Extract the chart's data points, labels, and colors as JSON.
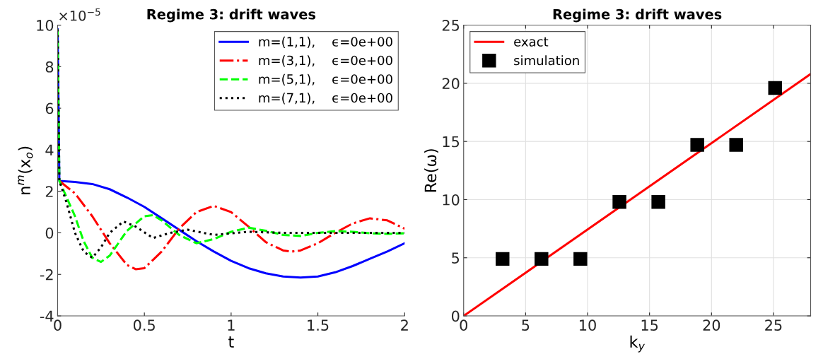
{
  "chart_data": [
    {
      "type": "line",
      "title": "Regime 3: drift waves",
      "xlabel": "t",
      "ylabel": "n$^{m}$(x$_{o}$)",
      "xlim": [
        0,
        2
      ],
      "ylim": [
        -4,
        10
      ],
      "xticks": [
        0,
        0.5,
        1,
        1.5,
        2
      ],
      "yticks": [
        -4,
        -2,
        0,
        2,
        4,
        6,
        8,
        10
      ],
      "grid": false,
      "legend": "top right",
      "annotations": [
        "×10$^{−5}$"
      ],
      "series": [
        {
          "name": "m=(1,1),    ϵ=0e+00",
          "color": "#0000ff",
          "line_style": "solid",
          "x": [
            0,
            0.01,
            0.1,
            0.2,
            0.3,
            0.4,
            0.5,
            0.6,
            0.7,
            0.8,
            0.9,
            1.0,
            1.1,
            1.2,
            1.3,
            1.4,
            1.5,
            1.6,
            1.7,
            1.8,
            1.9,
            2.0
          ],
          "values": [
            9.8,
            2.5,
            2.45,
            2.35,
            2.1,
            1.7,
            1.25,
            0.7,
            0.15,
            -0.4,
            -0.9,
            -1.35,
            -1.7,
            -1.95,
            -2.1,
            -2.15,
            -2.1,
            -1.9,
            -1.6,
            -1.25,
            -0.9,
            -0.5
          ]
        },
        {
          "name": "m=(3,1),    ϵ=0e+00",
          "color": "#ff0000",
          "line_style": "dashdot",
          "x": [
            0.01,
            0.1,
            0.2,
            0.3,
            0.4,
            0.45,
            0.5,
            0.6,
            0.7,
            0.8,
            0.9,
            1.0,
            1.1,
            1.2,
            1.3,
            1.35,
            1.4,
            1.5,
            1.6,
            1.7,
            1.8,
            1.9,
            2.0
          ],
          "values": [
            2.5,
            1.9,
            0.8,
            -0.5,
            -1.55,
            -1.75,
            -1.7,
            -0.9,
            0.2,
            1.0,
            1.3,
            1.0,
            0.3,
            -0.45,
            -0.85,
            -0.9,
            -0.85,
            -0.5,
            0.0,
            0.45,
            0.7,
            0.6,
            0.2
          ]
        },
        {
          "name": "m=(5,1),    ϵ=0e+00",
          "color": "#00ff00",
          "line_style": "dashed",
          "x": [
            0,
            0.01,
            0.1,
            0.15,
            0.2,
            0.25,
            0.3,
            0.4,
            0.5,
            0.55,
            0.6,
            0.7,
            0.8,
            0.9,
            1.0,
            1.1,
            1.2,
            1.3,
            1.4,
            1.5,
            1.6,
            1.7,
            1.8,
            1.9,
            2.0
          ],
          "values": [
            9.8,
            2.5,
            0.8,
            -0.4,
            -1.2,
            -1.4,
            -1.1,
            0.1,
            0.8,
            0.85,
            0.6,
            -0.1,
            -0.5,
            -0.3,
            0.05,
            0.25,
            0.1,
            -0.1,
            -0.15,
            0.0,
            0.08,
            0.05,
            -0.02,
            -0.05,
            -0.02
          ]
        },
        {
          "name": "m=(7,1),    ϵ=0e+00",
          "color": "#000000",
          "line_style": "dotted",
          "x": [
            0,
            0.01,
            0.05,
            0.1,
            0.15,
            0.2,
            0.25,
            0.3,
            0.38,
            0.45,
            0.55,
            0.65,
            0.75,
            0.9,
            1.1,
            1.3,
            1.6,
            2.0
          ],
          "values": [
            9.8,
            2.5,
            1.5,
            0.0,
            -0.9,
            -1.2,
            -0.7,
            0.0,
            0.55,
            0.3,
            -0.25,
            0.0,
            0.15,
            -0.1,
            0.05,
            0.0,
            0.0,
            0.0
          ]
        }
      ]
    },
    {
      "type": "scatter",
      "title": "Regime 3: drift waves",
      "xlabel": "k$_{y}$",
      "ylabel": "Re(ω)",
      "xlim": [
        0,
        28
      ],
      "ylim": [
        0,
        25
      ],
      "xticks": [
        0,
        5,
        10,
        15,
        20,
        25
      ],
      "yticks": [
        0,
        5,
        10,
        15,
        20,
        25
      ],
      "grid": true,
      "legend": "top left",
      "series": [
        {
          "name": "exact",
          "type": "line",
          "color": "#ff0000",
          "line_style": "solid",
          "x": [
            0,
            28
          ],
          "values": [
            0,
            20.8
          ]
        },
        {
          "name": "simulation",
          "type": "scatter",
          "color": "#000000",
          "marker": "square",
          "x": [
            3.14,
            6.28,
            9.42,
            12.57,
            15.71,
            18.85,
            21.99,
            25.13
          ],
          "values": [
            4.9,
            4.9,
            4.9,
            9.8,
            9.8,
            14.7,
            14.7,
            19.6
          ]
        }
      ]
    }
  ]
}
